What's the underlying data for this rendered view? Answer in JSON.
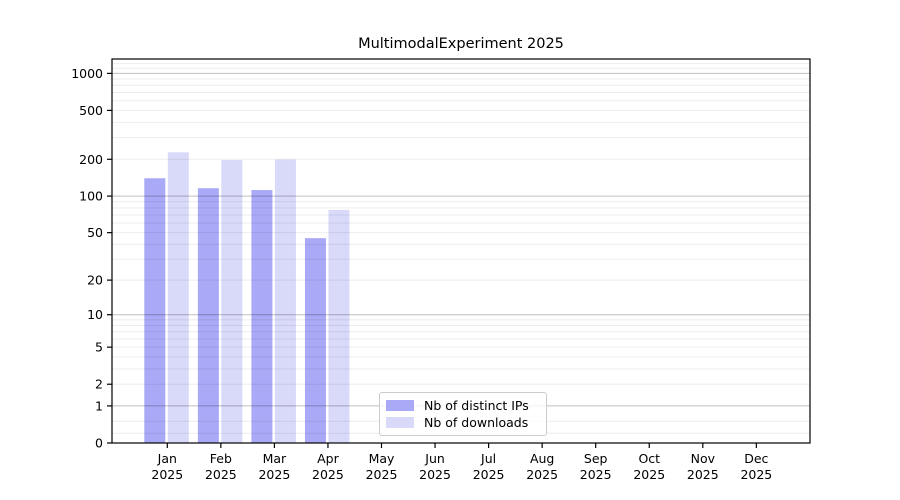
{
  "chart_data": {
    "type": "bar",
    "title": "MultimodalExperiment 2025",
    "categories": [
      "Jan",
      "Feb",
      "Mar",
      "Apr",
      "May",
      "Jun",
      "Jul",
      "Aug",
      "Sep",
      "Oct",
      "Nov",
      "Dec"
    ],
    "category_year": "2025",
    "series": [
      {
        "name": "Nb of distinct IPs",
        "color": "#a9a9f7",
        "values": [
          140,
          116,
          112,
          45,
          0,
          0,
          0,
          0,
          0,
          0,
          0,
          0
        ]
      },
      {
        "name": "Nb of downloads",
        "color": "#d9d9f9",
        "values": [
          228,
          197,
          199,
          77,
          0,
          0,
          0,
          0,
          0,
          0,
          0,
          0
        ]
      }
    ],
    "yscale": "symlog (y proportional to ln(1+v))",
    "ytick_values": [
      0,
      1,
      2,
      5,
      10,
      20,
      50,
      100,
      200,
      500,
      1000
    ],
    "ytick_labels": [
      "0",
      "1",
      "2",
      "5",
      "10",
      "20",
      "50",
      "100",
      "200",
      "500",
      "1000"
    ],
    "ylim": [
      0,
      1310
    ],
    "xlabel": "",
    "ylabel": "",
    "grid": "horizontal, minor lines at 2-9 per decade, darker lines at powers of 10",
    "legend_position": "lower center-left inside plot"
  }
}
